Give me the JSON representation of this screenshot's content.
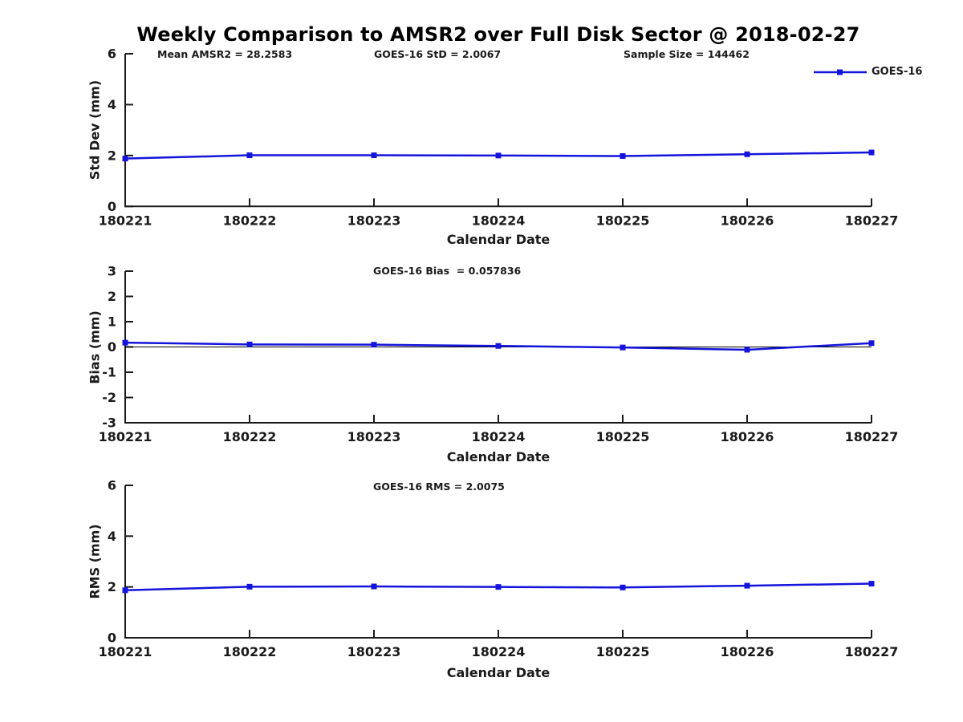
{
  "title": "Weekly Comparison to AMSR2 over Full Disk Sector @ 2018-02-27",
  "colors": {
    "series_blue": "#1414db",
    "axis": "#1a1a1a",
    "text": "#1a1a1a",
    "zero_line": "#000000"
  },
  "legend": {
    "label": "GOES-16",
    "marker": "square",
    "position": "top-right"
  },
  "chart_data": [
    {
      "type": "line",
      "name": "std-dev",
      "annotations": [
        "Mean AMSR2 = 28.2583",
        "GOES-16 StD = 2.0067",
        "Sample Size = 144462"
      ],
      "categories": [
        "180221",
        "180222",
        "180223",
        "180224",
        "180225",
        "180226",
        "180227"
      ],
      "series": [
        {
          "name": "GOES-16",
          "marker": "square",
          "values": [
            1.88,
            2.01,
            2.01,
            2.0,
            1.98,
            2.05,
            2.12
          ]
        }
      ],
      "xlabel": "Calendar Date",
      "ylabel": "Std Dev (mm)",
      "ylim": [
        0,
        6
      ],
      "yticks": [
        0,
        2,
        4,
        6
      ],
      "grid": false,
      "zero_line": false
    },
    {
      "type": "line",
      "name": "bias",
      "annotation": "GOES-16 Bias  = 0.057836",
      "categories": [
        "180221",
        "180222",
        "180223",
        "180224",
        "180225",
        "180226",
        "180227"
      ],
      "series": [
        {
          "name": "GOES-16",
          "marker": "square",
          "values": [
            0.17,
            0.1,
            0.09,
            0.04,
            -0.02,
            -0.11,
            0.15
          ]
        }
      ],
      "xlabel": "Calendar Date",
      "ylabel": "Bias (mm)",
      "ylim": [
        -3,
        3
      ],
      "yticks": [
        -3,
        -2,
        -1,
        0,
        1,
        2,
        3
      ],
      "grid": false,
      "zero_line": true
    },
    {
      "type": "line",
      "name": "rms",
      "annotation": "GOES-16 RMS = 2.0075",
      "categories": [
        "180221",
        "180222",
        "180223",
        "180224",
        "180225",
        "180226",
        "180227"
      ],
      "series": [
        {
          "name": "GOES-16",
          "marker": "square",
          "values": [
            1.87,
            2.01,
            2.02,
            2.0,
            1.98,
            2.05,
            2.13
          ]
        }
      ],
      "xlabel": "Calendar Date",
      "ylabel": "RMS (mm)",
      "ylim": [
        0,
        6
      ],
      "yticks": [
        0,
        2,
        4,
        6
      ],
      "grid": false,
      "zero_line": false
    }
  ]
}
